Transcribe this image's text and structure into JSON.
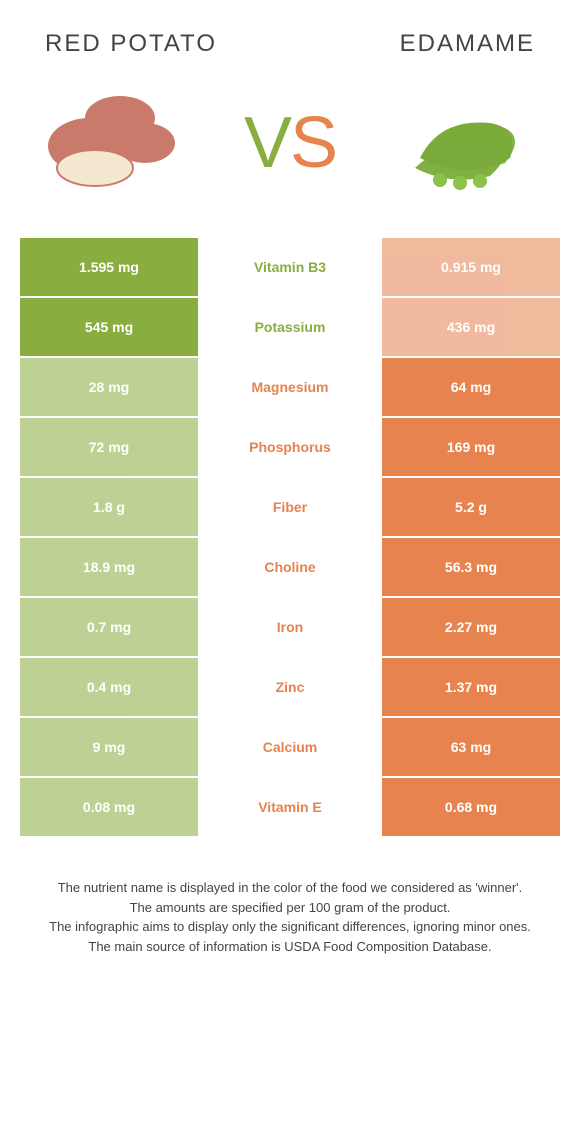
{
  "header": {
    "left_title": "RED POTATO",
    "right_title": "EDAMAME"
  },
  "vs": {
    "v": "V",
    "s": "S"
  },
  "colors": {
    "left": "#8aad3f",
    "right": "#e6834f",
    "left_dim": "#8aad3f",
    "right_dim": "#e6834f",
    "mid_left_text": "#8aad3f",
    "mid_right_text": "#e6834f"
  },
  "rows": [
    {
      "left": "1.595 mg",
      "mid": "Vitamin B3",
      "right": "0.915 mg",
      "winner": "left"
    },
    {
      "left": "545 mg",
      "mid": "Potassium",
      "right": "436 mg",
      "winner": "left"
    },
    {
      "left": "28 mg",
      "mid": "Magnesium",
      "right": "64 mg",
      "winner": "right"
    },
    {
      "left": "72 mg",
      "mid": "Phosphorus",
      "right": "169 mg",
      "winner": "right"
    },
    {
      "left": "1.8 g",
      "mid": "Fiber",
      "right": "5.2 g",
      "winner": "right"
    },
    {
      "left": "18.9 mg",
      "mid": "Choline",
      "right": "56.3 mg",
      "winner": "right"
    },
    {
      "left": "0.7 mg",
      "mid": "Iron",
      "right": "2.27 mg",
      "winner": "right"
    },
    {
      "left": "0.4 mg",
      "mid": "Zinc",
      "right": "1.37 mg",
      "winner": "right"
    },
    {
      "left": "9 mg",
      "mid": "Calcium",
      "right": "63 mg",
      "winner": "right"
    },
    {
      "left": "0.08 mg",
      "mid": "Vitamin E",
      "right": "0.68 mg",
      "winner": "right"
    }
  ],
  "footnote": {
    "l1": "The nutrient name is displayed in the color of the food we considered as 'winner'.",
    "l2": "The amounts are specified per 100 gram of the product.",
    "l3": "The infographic aims to display only the significant differences, ignoring minor ones.",
    "l4": "The main source of information is USDA Food Composition Database."
  }
}
